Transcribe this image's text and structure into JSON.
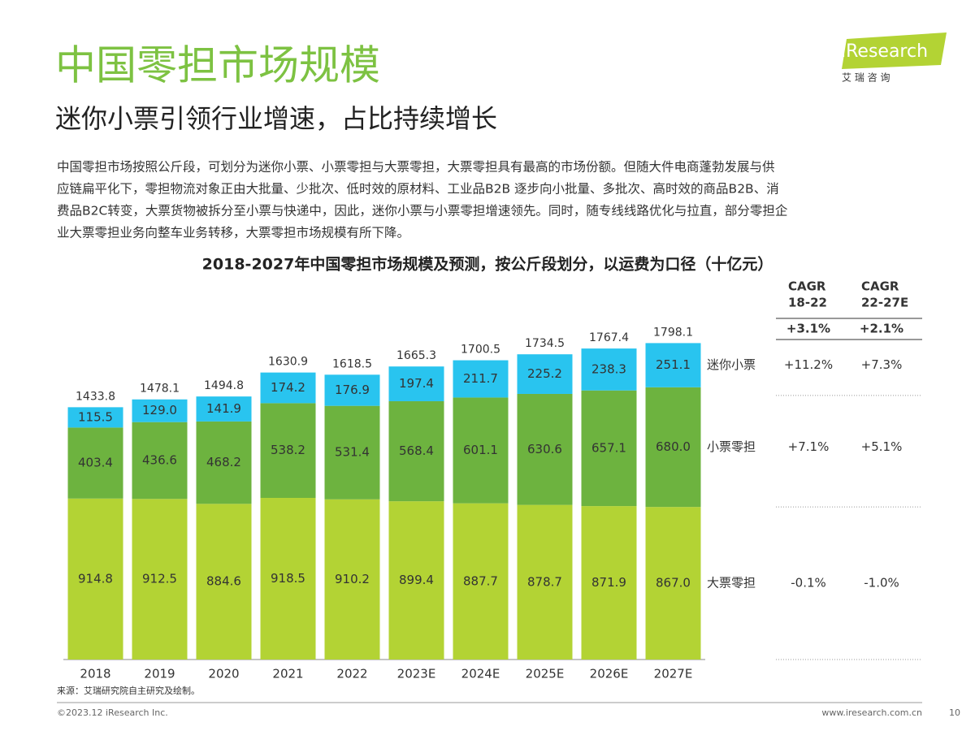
{
  "header": {
    "title": "中国零担市场规模",
    "subtitle": "迷你小票引领行业增速，占比持续增长",
    "logo": "iResearch",
    "logo_sub": "艾 瑞 咨 询"
  },
  "body_lines": [
    "中国零担市场按照公斤段，可划分为迷你小票、小票零担与大票零担，大票零担具有最高的市场份额。但随大件电商蓬勃发展与供",
    "应链扁平化下，零担物流对象正由大批量、少批次、低时效的原材料、工业品B2B 逐步向小批量、多批次、高时效的商品B2B、消",
    "费品B2C转变，大票货物被拆分至小票与快递中，因此，迷你小票与小票零担增速领先。同时，随专线线路优化与拉直，部分零担企",
    "业大票零担业务向整车业务转移，大票零担市场规模有所下降。"
  ],
  "chart_data": {
    "type": "stacked-bar",
    "title": "2018-2027年中国零担市场规模及预测，按公斤段划分，以运费为口径（十亿元）",
    "categories": [
      "2018",
      "2019",
      "2020",
      "2021",
      "2022",
      "2023E",
      "2024E",
      "2025E",
      "2026E",
      "2027E"
    ],
    "series": [
      {
        "name": "大票零担",
        "color": "#b3d334",
        "values": [
          914.8,
          912.5,
          884.6,
          918.5,
          910.2,
          899.4,
          887.7,
          878.7,
          871.9,
          867.0
        ],
        "value_labels": [
          "914.8",
          "912.5",
          "884.6",
          "918.5",
          "910.2",
          "899.4",
          "887.7",
          "878.7",
          "871.9",
          "867.0"
        ]
      },
      {
        "name": "小票零担",
        "color": "#6db33f",
        "values": [
          403.4,
          436.6,
          468.2,
          538.2,
          531.4,
          568.4,
          601.1,
          630.6,
          657.1,
          680.0
        ],
        "value_labels": [
          "403.4",
          "436.6",
          "468.2",
          "538.2",
          "531.4",
          "568.4",
          "601.1",
          "630.6",
          "657.1",
          "680.0"
        ]
      },
      {
        "name": "迷你小票",
        "color": "#29c4ef",
        "values": [
          115.5,
          129.0,
          141.9,
          174.2,
          176.9,
          197.4,
          211.7,
          225.2,
          238.3,
          251.1
        ],
        "value_labels": [
          "115.5",
          "129.0",
          "141.9",
          "174.2",
          "176.9",
          "197.4",
          "211.7",
          "225.2",
          "238.3",
          "251.1"
        ]
      }
    ],
    "totals": [
      1433.8,
      1478.1,
      1494.8,
      1630.9,
      1618.5,
      1665.3,
      1700.5,
      1734.5,
      1767.4,
      1798.1
    ],
    "ylim": [
      0,
      1800
    ],
    "cagr": {
      "headers": [
        [
          "CAGR",
          "18-22"
        ],
        [
          "CAGR",
          "22-27E"
        ]
      ],
      "total": [
        "+3.1%",
        "+2.1%"
      ],
      "rows": [
        [
          "-0.1%",
          "-1.0%"
        ],
        [
          "+7.1%",
          "+5.1%"
        ],
        [
          "+11.2%",
          "+7.3%"
        ]
      ]
    }
  },
  "source": "来源：艾瑞研究院自主研究及绘制。",
  "footer": {
    "copyright": "©2023.12 iResearch Inc.",
    "url": "www.iresearch.com.cn",
    "page": "10"
  }
}
